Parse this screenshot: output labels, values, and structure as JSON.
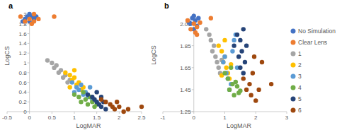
{
  "chart_data": [
    {
      "type": "scatter",
      "title": "a",
      "x_label": "LogMAR",
      "y_label": "LogCS",
      "xlim": [
        -0.5,
        2.5
      ],
      "xticks": [
        -0.5,
        0,
        0.5,
        1,
        1.5,
        2,
        2.5
      ],
      "ylim": [
        0,
        2
      ],
      "yticks": [
        0,
        0.2,
        0.4,
        0.6,
        0.8,
        1,
        1.2,
        1.4,
        1.6,
        1.8,
        2
      ],
      "grid": false,
      "marker": "circle",
      "series": [
        {
          "name": "No Simulation",
          "color": "#4472c4",
          "x": [
            -0.1,
            -0.05,
            0,
            0.05,
            0.1,
            -0.15,
            0.15,
            0
          ],
          "y": [
            1.9,
            1.95,
            1.85,
            1.95,
            1.9,
            1.85,
            1.95,
            2.0
          ]
        },
        {
          "name": "Clear Lens",
          "color": "#ed7d31",
          "x": [
            -0.2,
            -0.1,
            0,
            0.05,
            0.1,
            0.2,
            0.55,
            0.1
          ],
          "y": [
            1.95,
            1.85,
            1.9,
            1.8,
            1.85,
            1.9,
            1.95,
            2.0
          ]
        },
        {
          "name": "1",
          "color": "#a5a5a5",
          "x": [
            0.4,
            0.5,
            0.55,
            0.6,
            0.65,
            0.7,
            0.75,
            0.8,
            0.85,
            0.9
          ],
          "y": [
            1.05,
            1.0,
            0.9,
            0.95,
            0.8,
            0.85,
            0.7,
            0.75,
            0.6,
            0.65
          ]
        },
        {
          "name": "2",
          "color": "#ffc000",
          "x": [
            0.8,
            0.9,
            0.95,
            1.0,
            1.05,
            1.1,
            1.15,
            1.2,
            1.0,
            0.9
          ],
          "y": [
            0.8,
            0.75,
            0.65,
            0.7,
            0.55,
            0.6,
            0.45,
            0.5,
            0.85,
            0.5
          ]
        },
        {
          "name": "3",
          "color": "#5b9bd5",
          "x": [
            0.95,
            1.05,
            1.1,
            1.2,
            1.25,
            1.3,
            1.35,
            1.4,
            1.15,
            1.0
          ],
          "y": [
            0.6,
            0.5,
            0.45,
            0.35,
            0.4,
            0.3,
            0.5,
            0.25,
            0.55,
            0.4
          ]
        },
        {
          "name": "4",
          "color": "#70ad47",
          "x": [
            1.0,
            1.1,
            1.15,
            1.25,
            1.3,
            1.4,
            1.45,
            1.2,
            1.35,
            1.5
          ],
          "y": [
            0.35,
            0.3,
            0.2,
            0.25,
            0.15,
            0.2,
            0.1,
            0.4,
            0.3,
            0.15
          ]
        },
        {
          "name": "5",
          "color": "#264478",
          "x": [
            1.3,
            1.4,
            1.45,
            1.5,
            1.55,
            1.6,
            1.65,
            1.7,
            1.5,
            1.6
          ],
          "y": [
            0.35,
            0.3,
            0.25,
            0.2,
            0.15,
            0.1,
            0.2,
            0.05,
            0.4,
            0.3
          ]
        },
        {
          "name": "6",
          "color": "#9e480e",
          "x": [
            1.6,
            1.7,
            1.8,
            1.85,
            1.9,
            2.0,
            2.1,
            2.2,
            2.5,
            1.95
          ],
          "y": [
            0.25,
            0.2,
            0.15,
            0.1,
            0.05,
            0.1,
            0.0,
            0.05,
            0.1,
            0.2
          ]
        }
      ]
    },
    {
      "type": "scatter",
      "title": "b",
      "x_label": "LogMAR",
      "y_label": "LogCS",
      "xlim": [
        -1,
        3
      ],
      "xticks": [
        -1,
        0,
        1,
        2,
        3
      ],
      "ylim": [
        1.25,
        2.15
      ],
      "yticks": [
        1.25,
        1.45,
        1.65,
        1.85,
        2.05
      ],
      "grid": false,
      "marker": "circle",
      "legend": "right",
      "series": [
        {
          "name": "No Simulation",
          "color": "#4472c4",
          "x": [
            -0.1,
            -0.05,
            0,
            0.05,
            0.1,
            -0.15,
            0.15,
            0
          ],
          "y": [
            2.05,
            2.1,
            2.0,
            2.08,
            2.03,
            2.06,
            2.1,
            2.12
          ]
        },
        {
          "name": "Clear Lens",
          "color": "#ed7d31",
          "x": [
            -0.2,
            -0.1,
            0,
            0.05,
            0.1,
            0.2,
            0.55,
            0.1
          ],
          "y": [
            2.08,
            2.0,
            2.05,
            1.97,
            2.02,
            2.06,
            2.1,
            1.95
          ]
        },
        {
          "name": "1",
          "color": "#a5a5a5",
          "x": [
            0.4,
            0.5,
            0.55,
            0.6,
            0.65,
            0.7,
            0.75,
            0.8,
            0.85,
            0.9
          ],
          "y": [
            2.0,
            1.95,
            1.9,
            1.8,
            1.85,
            1.75,
            1.7,
            1.65,
            1.6,
            1.72
          ]
        },
        {
          "name": "2",
          "color": "#ffc000",
          "x": [
            0.8,
            0.9,
            0.95,
            1.0,
            1.05,
            1.1,
            1.15,
            1.2,
            1.0,
            0.9
          ],
          "y": [
            1.85,
            1.8,
            1.7,
            1.75,
            1.65,
            1.6,
            1.55,
            1.68,
            1.9,
            1.58
          ]
        },
        {
          "name": "3",
          "color": "#5b9bd5",
          "x": [
            0.95,
            1.05,
            1.1,
            1.2,
            1.25,
            1.3,
            1.35,
            1.4,
            1.15,
            1.0
          ],
          "y": [
            1.7,
            1.6,
            1.55,
            1.5,
            1.8,
            1.9,
            1.95,
            1.65,
            1.45,
            1.75
          ]
        },
        {
          "name": "4",
          "color": "#70ad47",
          "x": [
            1.0,
            1.1,
            1.15,
            1.25,
            1.3,
            1.4,
            1.45,
            1.2,
            1.35,
            1.5
          ],
          "y": [
            1.6,
            1.55,
            1.45,
            1.5,
            1.4,
            1.48,
            1.42,
            1.65,
            1.52,
            1.44
          ]
        },
        {
          "name": "5",
          "color": "#264478",
          "x": [
            1.3,
            1.4,
            1.45,
            1.5,
            1.55,
            1.6,
            1.65,
            1.7,
            1.5,
            1.6
          ],
          "y": [
            1.85,
            1.95,
            1.75,
            1.9,
            1.8,
            2.0,
            1.7,
            1.85,
            1.65,
            1.6
          ]
        },
        {
          "name": "6",
          "color": "#9e480e",
          "x": [
            1.6,
            1.7,
            1.8,
            1.85,
            1.9,
            2.0,
            2.1,
            2.2,
            2.5,
            1.95
          ],
          "y": [
            1.55,
            1.45,
            1.5,
            1.4,
            1.6,
            1.35,
            1.45,
            1.7,
            1.5,
            1.75
          ]
        }
      ]
    }
  ]
}
